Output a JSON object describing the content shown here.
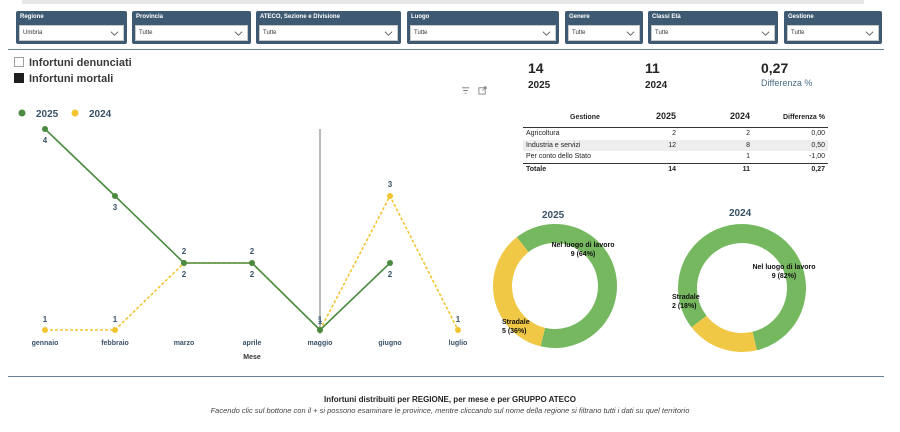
{
  "filters": [
    {
      "id": "regione",
      "label": "Regione",
      "value": "Umbria"
    },
    {
      "id": "provincia",
      "label": "Provincia",
      "value": "Tutte"
    },
    {
      "id": "ateco",
      "label": "ATECO, Sezione e Divisione",
      "value": "Tutte"
    },
    {
      "id": "luogo",
      "label": "Luogo",
      "value": "Tutte"
    },
    {
      "id": "genere",
      "label": "Genere",
      "value": "Tutte"
    },
    {
      "id": "classi-eta",
      "label": "Classi Età",
      "value": "Tutte"
    },
    {
      "id": "gestione",
      "label": "Gestione",
      "value": "Tutte"
    }
  ],
  "view_toggle": {
    "denunciati": "Infortuni denunciati",
    "mortali": "Infortuni mortali"
  },
  "icons": {
    "filter": "filter-icon",
    "focus": "focus-mode-icon",
    "chevron": "chevron-down-icon"
  },
  "colors": {
    "s2025": "#4a8b3f",
    "s2024": "#f2c530",
    "header": "#3e5a73",
    "donut_green": "#76b85f",
    "donut_yellow": "#f0c846"
  },
  "kpis": {
    "v2025": "14",
    "y2025": "2025",
    "v2024": "11",
    "y2024": "2024",
    "diff": "0,27",
    "diff_label": "Differenza %"
  },
  "table": {
    "headers": [
      "Gestione",
      "2025",
      "2024",
      "Differenza %"
    ],
    "rows": [
      [
        "Agricoltura",
        "2",
        "2",
        "0,00"
      ],
      [
        "Industria e servizi",
        "12",
        "8",
        "0,50"
      ],
      [
        "Per conto dello Stato",
        "",
        "1",
        "-1,00"
      ]
    ],
    "total": [
      "Totale",
      "14",
      "11",
      "0,27"
    ]
  },
  "chart_data": [
    {
      "type": "line",
      "xlabel": "Mese",
      "ylabel": "",
      "categories": [
        "gennaio",
        "febbraio",
        "marzo",
        "aprile",
        "maggio",
        "giugno",
        "luglio"
      ],
      "series": [
        {
          "name": "2025",
          "values": [
            4,
            3,
            2,
            2,
            1,
            2,
            null
          ]
        },
        {
          "name": "2024",
          "values": [
            1,
            1,
            2,
            2,
            1,
            3,
            1
          ]
        }
      ],
      "legend": "top-left"
    },
    {
      "type": "pie",
      "title": "2025",
      "slices": [
        {
          "name": "Nel luogo di lavoro",
          "value": 9,
          "label": "9 (64%)"
        },
        {
          "name": "Stradale",
          "value": 5,
          "label": "5 (36%)"
        }
      ]
    },
    {
      "type": "pie",
      "title": "2024",
      "slices": [
        {
          "name": "Nel luogo di lavoro",
          "value": 9,
          "label": "9 (82%)"
        },
        {
          "name": "Stradale",
          "value": 2,
          "label": "2 (18%)"
        }
      ]
    }
  ],
  "footer": {
    "title": "Infortuni distribuiti per REGIONE, per mese e per GRUPPO ATECO",
    "subtitle": "Facendo clic sul bottone con il + si possono esaminare le province, mentre cliccando sul nome della regione si filtrano tutti i dati su quel territorio"
  }
}
